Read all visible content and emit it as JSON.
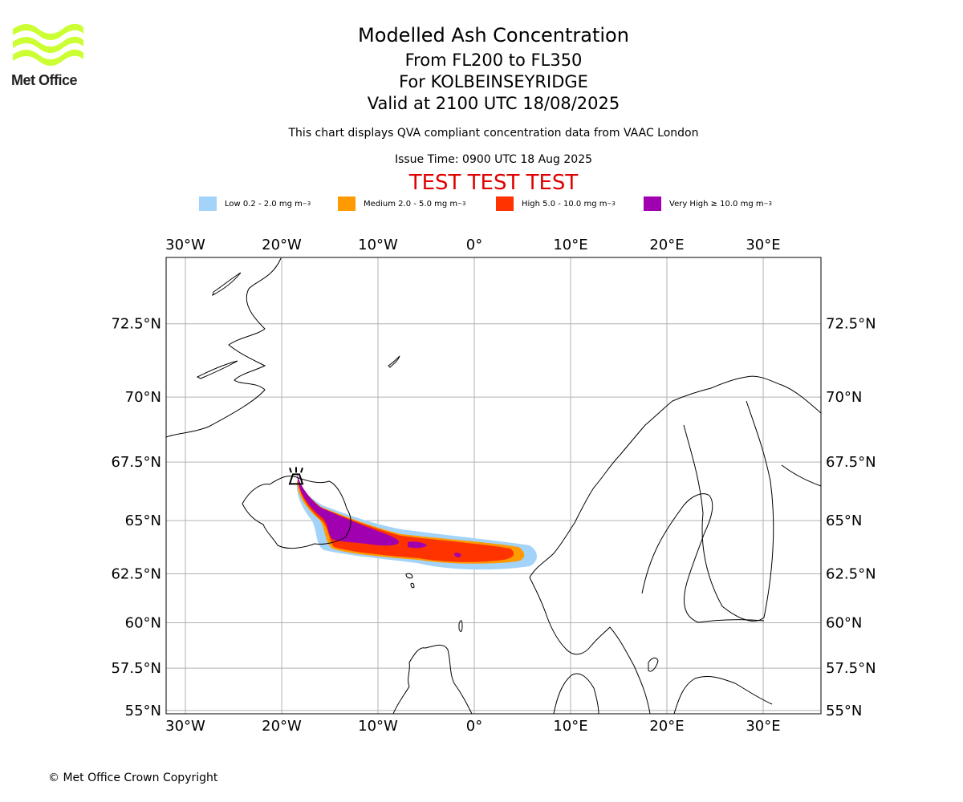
{
  "logo": {
    "text": "Met Office",
    "color": "#ccff33"
  },
  "title": {
    "main": "Modelled Ash Concentration",
    "levels": "From FL200 to FL350",
    "volcano": "For KOLBEINSEYRIDGE",
    "valid": "Valid at 2100 UTC 18/08/2025"
  },
  "subtitle": "This chart displays QVA compliant concentration data from VAAC London",
  "issue_time": "Issue Time: 0900 UTC 18 Aug 2025",
  "test_banner": "TEST TEST TEST",
  "legend": [
    {
      "label": "Low 0.2 - 2.0 mg m",
      "color": "#a3d3f9"
    },
    {
      "label": "Medium 2.0 - 5.0 mg m",
      "color": "#ff9a00"
    },
    {
      "label": "High 5.0 - 10.0 mg m",
      "color": "#ff3300"
    },
    {
      "label": "Very High ≥ 10.0 mg m",
      "color": "#a000b0"
    }
  ],
  "legend_unit_exp": "−3",
  "map": {
    "lon_labels": [
      "30°W",
      "20°W",
      "10°W",
      "0°",
      "10°E",
      "20°E",
      "30°E"
    ],
    "lat_labels": [
      "72.5°N",
      "70°N",
      "67.5°N",
      "65°N",
      "62.5°N",
      "60°N",
      "57.5°N",
      "55°N"
    ],
    "lon_range": [
      -32,
      36
    ],
    "lat_range": [
      54.8,
      74.5
    ],
    "volcano": {
      "name": "KOLBEINSEYRIDGE",
      "lon": -18.5,
      "lat": 66.8
    }
  },
  "copyright": "© Met Office Crown Copyright"
}
